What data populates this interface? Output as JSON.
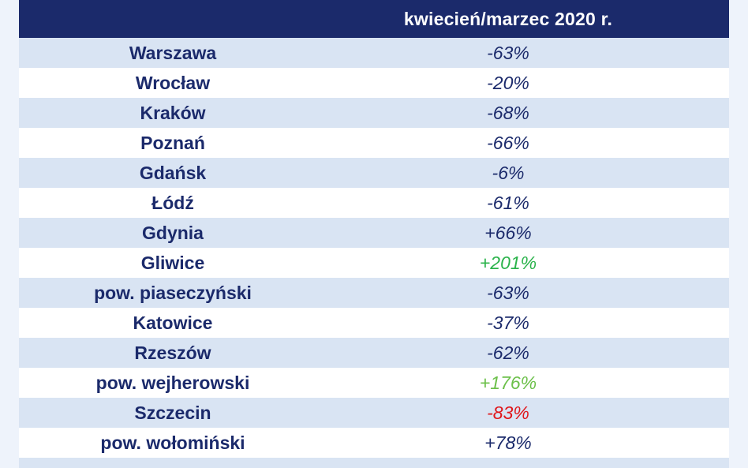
{
  "table": {
    "header": {
      "city": "",
      "value": "kwiecień/marzec 2020 r."
    },
    "rows": [
      {
        "city": "Warszawa",
        "value": "-63%",
        "color": "#1b2a6b"
      },
      {
        "city": "Wrocław",
        "value": "-20%",
        "color": "#1b2a6b"
      },
      {
        "city": "Kraków",
        "value": "-68%",
        "color": "#1b2a6b"
      },
      {
        "city": "Poznań",
        "value": "-66%",
        "color": "#1b2a6b"
      },
      {
        "city": "Gdańsk",
        "value": "-6%",
        "color": "#1b2a6b"
      },
      {
        "city": "Łódź",
        "value": "-61%",
        "color": "#1b2a6b"
      },
      {
        "city": "Gdynia",
        "value": "+66%",
        "color": "#1b2a6b"
      },
      {
        "city": "Gliwice",
        "value": "+201%",
        "color": "#2bb34b"
      },
      {
        "city": "pow. piaseczyński",
        "value": "-63%",
        "color": "#1b2a6b"
      },
      {
        "city": "Katowice",
        "value": "-37%",
        "color": "#1b2a6b"
      },
      {
        "city": "Rzeszów",
        "value": "-62%",
        "color": "#1b2a6b"
      },
      {
        "city": "pow. wejherowski",
        "value": "+176%",
        "color": "#6cc04a"
      },
      {
        "city": "Szczecin",
        "value": "-83%",
        "color": "#e0161b"
      },
      {
        "city": "pow. wołomiński",
        "value": "+78%",
        "color": "#1b2a6b"
      }
    ]
  },
  "colors": {
    "header_bg": "#1b2a6b",
    "row_shade": "#d9e4f3",
    "text_primary": "#1b2a6b",
    "positive_highlight": "#2bb34b",
    "positive_light": "#6cc04a",
    "negative_highlight": "#e0161b"
  }
}
